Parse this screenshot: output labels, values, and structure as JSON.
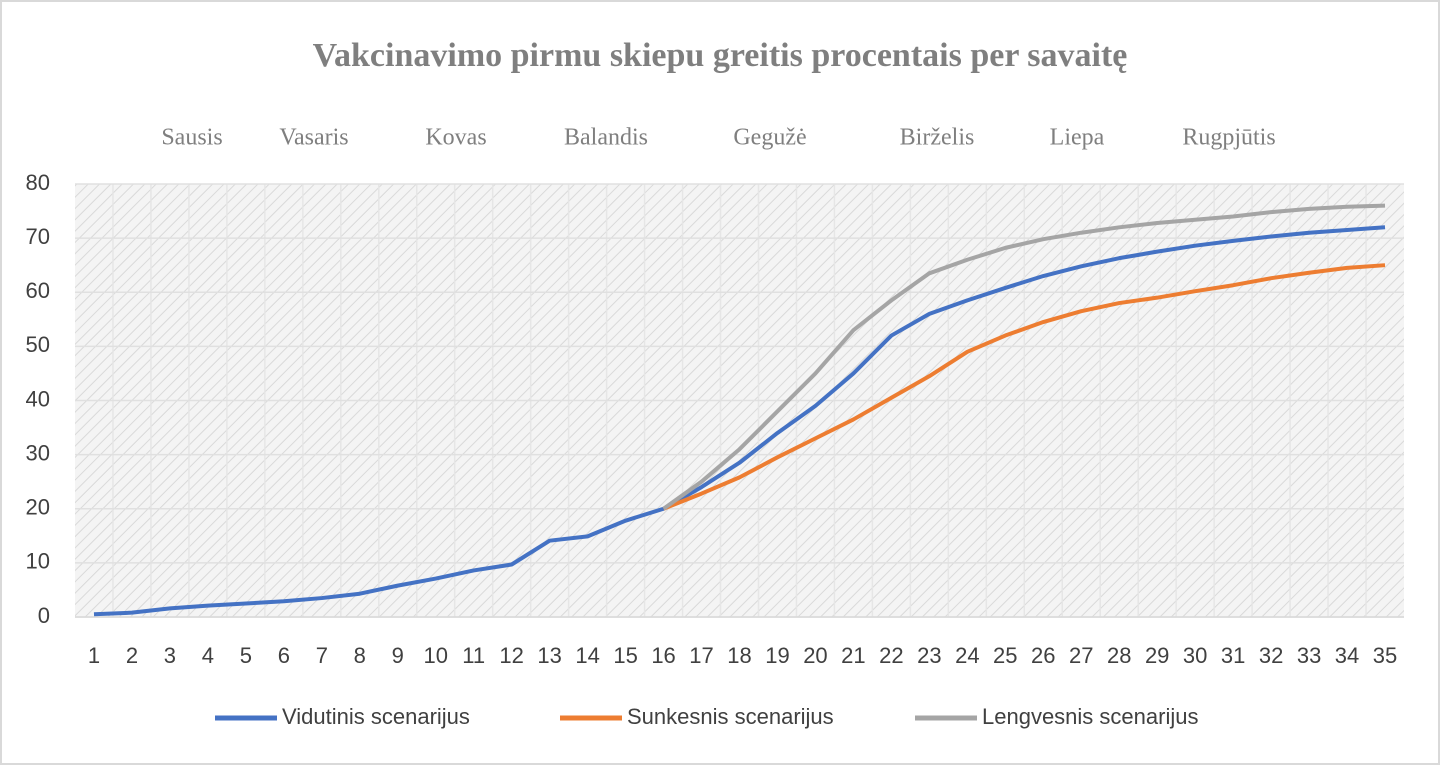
{
  "chart_data": {
    "type": "line",
    "title": "Vakcinavimo pirmu skiepu greitis procentais per savaitę",
    "months": [
      "Sausis",
      "Vasaris",
      "Kovas",
      "Balandis",
      "Gegužė",
      "Birželis",
      "Liepa",
      "Rugpjūtis"
    ],
    "categories": [
      1,
      2,
      3,
      4,
      5,
      6,
      7,
      8,
      9,
      10,
      11,
      12,
      13,
      14,
      15,
      16,
      17,
      18,
      19,
      20,
      21,
      22,
      23,
      24,
      25,
      26,
      27,
      28,
      29,
      30,
      31,
      32,
      33,
      34,
      35
    ],
    "series": [
      {
        "name": "Vidutinis scenarijus",
        "color": "#4472c4",
        "values": [
          0.5,
          0.8,
          1.6,
          2.1,
          2.5,
          2.9,
          3.5,
          4.3,
          5.8,
          7.1,
          8.6,
          9.7,
          14.1,
          14.9,
          17.8,
          20,
          24,
          28.5,
          34,
          39,
          45,
          52,
          56,
          58.5,
          60.8,
          63,
          64.8,
          66.3,
          67.5,
          68.6,
          69.5,
          70.3,
          71,
          71.5,
          72
        ]
      },
      {
        "name": "Sunkesnis scenarijus",
        "color": "#ed7d31",
        "values": [
          null,
          null,
          null,
          null,
          null,
          null,
          null,
          null,
          null,
          null,
          null,
          null,
          null,
          null,
          null,
          20,
          22.8,
          25.8,
          29.5,
          33,
          36.5,
          40.5,
          44.5,
          49,
          52,
          54.5,
          56.5,
          58,
          59,
          60.2,
          61.3,
          62.6,
          63.6,
          64.5,
          65
        ]
      },
      {
        "name": "Lengvesnis scenarijus",
        "color": "#a5a5a5",
        "values": [
          null,
          null,
          null,
          null,
          null,
          null,
          null,
          null,
          null,
          null,
          null,
          null,
          null,
          null,
          null,
          20,
          25,
          31,
          38,
          45,
          53,
          58.5,
          63.5,
          66,
          68.2,
          69.8,
          71,
          72,
          72.8,
          73.4,
          74,
          74.8,
          75.4,
          75.8,
          76
        ]
      }
    ],
    "ylim": [
      0,
      80
    ],
    "yticks": [
      0,
      10,
      20,
      30,
      40,
      50,
      60,
      70,
      80
    ],
    "grid": true,
    "legend": "bottom"
  }
}
